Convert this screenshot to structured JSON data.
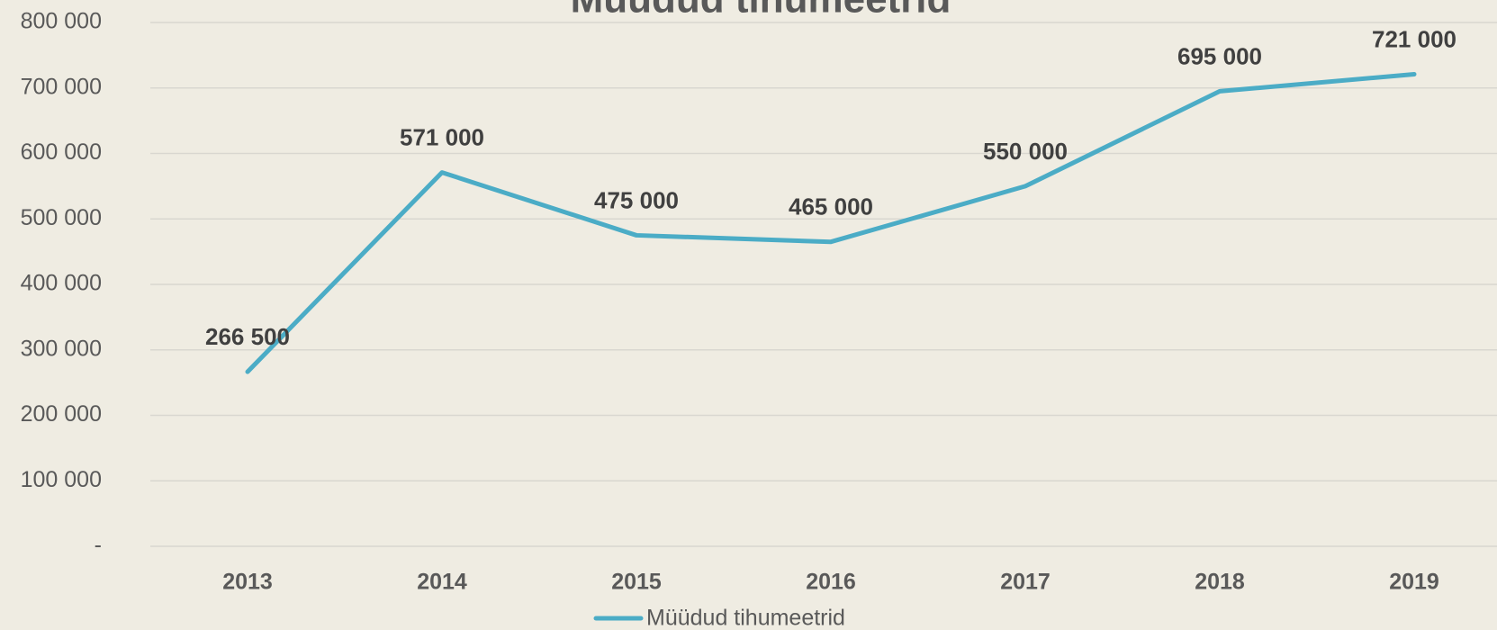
{
  "chart_data": {
    "type": "line",
    "title": "Müüdud tihumeetrid",
    "categories": [
      "2013",
      "2014",
      "2015",
      "2016",
      "2017",
      "2018",
      "2019"
    ],
    "series": [
      {
        "name": "Müüdud tihumeetrid",
        "color": "#4bacc6",
        "values": [
          266500,
          571000,
          475000,
          465000,
          550000,
          695000,
          721000
        ],
        "value_labels": [
          "266 500",
          "571 000",
          "475 000",
          "465 000",
          "550 000",
          "695 000",
          "721 000"
        ]
      }
    ],
    "ylim": [
      0,
      800000
    ],
    "yticks": [
      {
        "value": 0,
        "label": "-"
      },
      {
        "value": 100000,
        "label": "100 000"
      },
      {
        "value": 200000,
        "label": "200 000"
      },
      {
        "value": 300000,
        "label": "300 000"
      },
      {
        "value": 400000,
        "label": "400 000"
      },
      {
        "value": 500000,
        "label": "500 000"
      },
      {
        "value": 600000,
        "label": "600 000"
      },
      {
        "value": 700000,
        "label": "700 000"
      },
      {
        "value": 800000,
        "label": "800 000"
      }
    ],
    "grid": true,
    "legend": "bottom"
  }
}
